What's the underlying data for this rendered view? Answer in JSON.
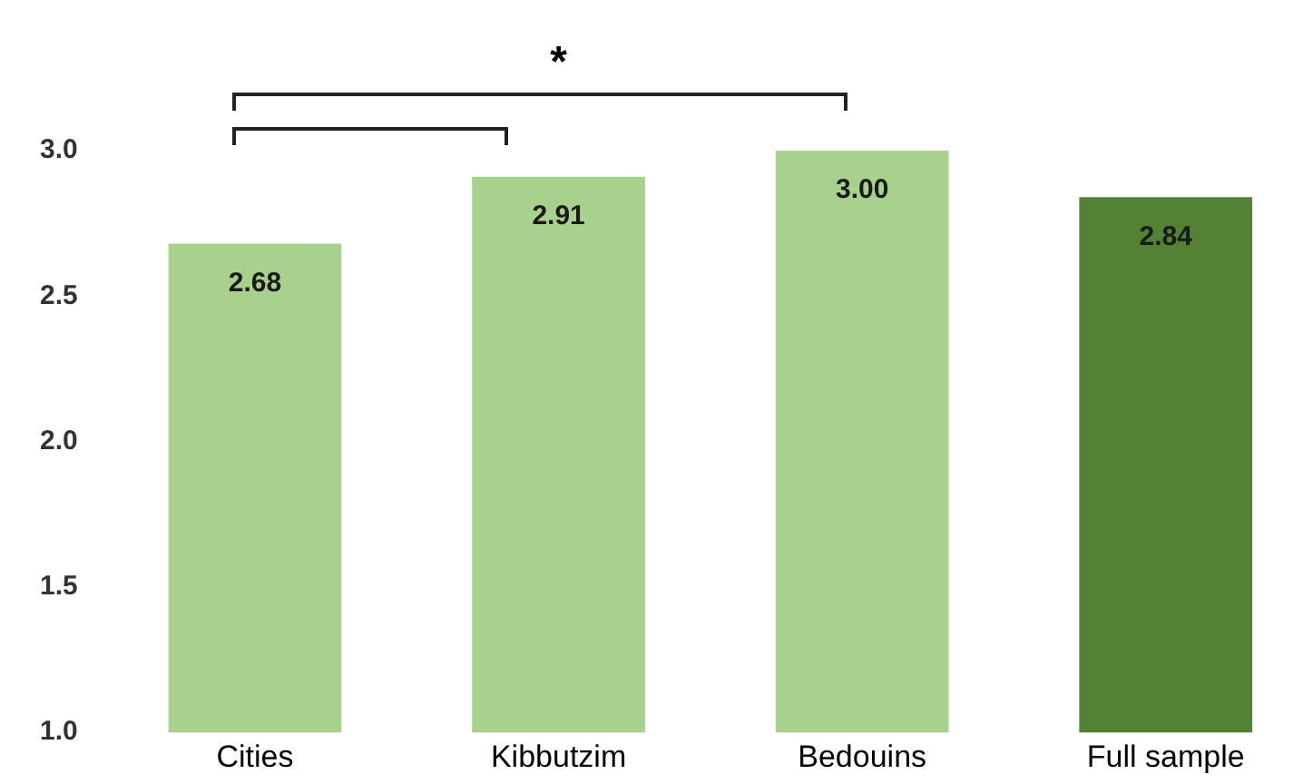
{
  "chart_data": {
    "type": "bar",
    "categories": [
      "Cities",
      "Kibbutzim",
      "Bedouins",
      "Full sample"
    ],
    "values": [
      2.68,
      2.91,
      3.0,
      2.84
    ],
    "colors": [
      "#a9d18e",
      "#a9d18e",
      "#a9d18e",
      "#548235"
    ],
    "value_labels": [
      "2.68",
      "2.91",
      "3.00",
      "2.84"
    ],
    "ylim": [
      1,
      3
    ],
    "yticks": [
      {
        "value": 1,
        "label": "1.0"
      },
      {
        "value": 1.5,
        "label": "1.5"
      },
      {
        "value": 2,
        "label": "2.0"
      },
      {
        "value": 2.5,
        "label": "2.5"
      },
      {
        "value": 3,
        "label": "3.0"
      }
    ],
    "grid": false,
    "legend": false,
    "annotations": [
      "*"
    ]
  }
}
